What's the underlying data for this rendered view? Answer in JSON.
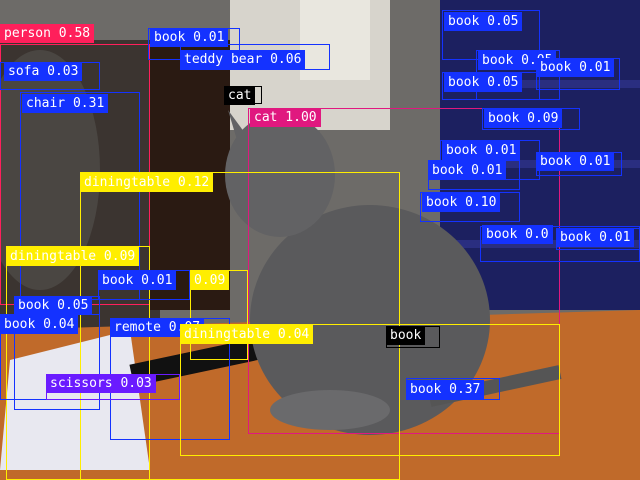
{
  "image": {
    "description_icon": "photo-cat-on-table",
    "colors": {
      "person": "#ff1f5b",
      "cat": "#e0187f",
      "book": "#1432ff",
      "diningtable": "#ffee00",
      "chair": "#1432ff",
      "sofa": "#1432ff",
      "teddy": "#1432ff",
      "remote": "#1432ff",
      "scissors": "#6a1bff",
      "unknown": "#000000"
    }
  },
  "detections": [
    {
      "label": "person 0.58",
      "color": "person",
      "text": "#ffffff"
    },
    {
      "label": "book 0.01",
      "color": "book",
      "text": "#ffffff"
    },
    {
      "label": "teddy bear 0.06",
      "color": "teddy",
      "text": "#ffffff"
    },
    {
      "label": "sofa 0.03",
      "color": "sofa",
      "text": "#ffffff"
    },
    {
      "label": "chair 0.31",
      "color": "chair",
      "text": "#ffffff"
    },
    {
      "label": "cat",
      "color": "unknown",
      "text": "#ffffff"
    },
    {
      "label": "cat 1.00",
      "color": "cat",
      "text": "#ffffff"
    },
    {
      "label": "diningtable 0.12",
      "color": "diningtable",
      "text": "#ffffff"
    },
    {
      "label": "diningtable 0.09",
      "color": "diningtable",
      "text": "#ffffff"
    },
    {
      "label": "book 0.01",
      "color": "book",
      "text": "#ffffff"
    },
    {
      "label": "0.09",
      "color": "diningtable",
      "text": "#ffffff"
    },
    {
      "label": "book 0.05",
      "color": "book",
      "text": "#ffffff"
    },
    {
      "label": "book 0.04",
      "color": "book",
      "text": "#ffffff"
    },
    {
      "label": "remote 0.07",
      "color": "remote",
      "text": "#ffffff"
    },
    {
      "label": "diningtable 0.04",
      "color": "diningtable",
      "text": "#ffffff"
    },
    {
      "label": "book",
      "color": "unknown",
      "text": "#ffffff"
    },
    {
      "label": "scissors 0.03",
      "color": "scissors",
      "text": "#ffffff"
    },
    {
      "label": "book 0.37",
      "color": "book",
      "text": "#ffffff"
    },
    {
      "label": "book 0.05",
      "color": "book",
      "text": "#ffffff"
    },
    {
      "label": "book 0.05",
      "color": "book",
      "text": "#ffffff"
    },
    {
      "label": "book 0.05",
      "color": "book",
      "text": "#ffffff"
    },
    {
      "label": "book 0.01",
      "color": "book",
      "text": "#ffffff"
    },
    {
      "label": "book 0.09",
      "color": "book",
      "text": "#ffffff"
    },
    {
      "label": "book 0.01",
      "color": "book",
      "text": "#ffffff"
    },
    {
      "label": "book 0.01",
      "color": "book",
      "text": "#ffffff"
    },
    {
      "label": "book 0.01",
      "color": "book",
      "text": "#ffffff"
    },
    {
      "label": "book 0.10",
      "color": "book",
      "text": "#ffffff"
    },
    {
      "label": "book 0.0",
      "color": "book",
      "text": "#ffffff"
    },
    {
      "label": "book 0.01",
      "color": "book",
      "text": "#ffffff"
    }
  ]
}
